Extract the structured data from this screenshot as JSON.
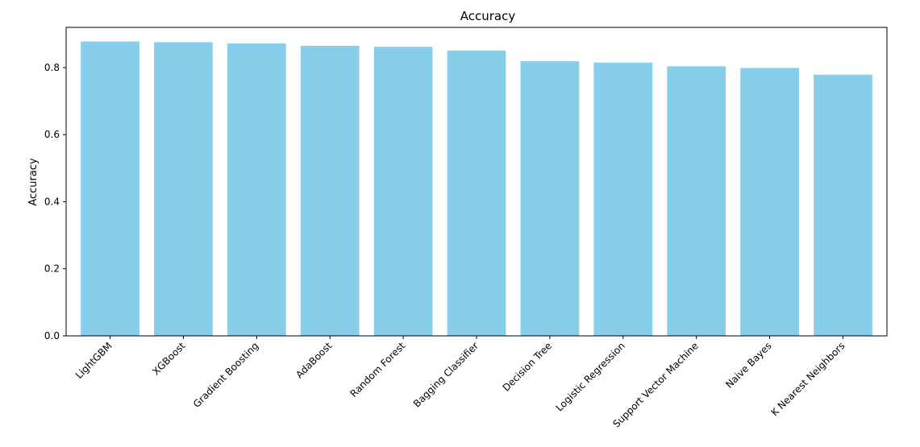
{
  "chart_data": {
    "type": "bar",
    "title": "Accuracy",
    "xlabel": "",
    "ylabel": "Accuracy",
    "categories": [
      "LightGBM",
      "XGBoost",
      "Gradient Boosting",
      "AdaBoost",
      "Random Forest",
      "Bagging Classifier",
      "Decision Tree",
      "Logistic Regression",
      "Support Vector Machine",
      "Naive Bayes",
      "K Nearest Neighbors"
    ],
    "values": [
      0.878,
      0.876,
      0.872,
      0.865,
      0.862,
      0.851,
      0.819,
      0.815,
      0.804,
      0.799,
      0.779
    ],
    "ylim": [
      0,
      0.92
    ],
    "yticks": [
      0.0,
      0.2,
      0.4,
      0.6,
      0.8
    ],
    "ytick_labels": [
      "0.0",
      "0.2",
      "0.4",
      "0.6",
      "0.8"
    ],
    "grid": false,
    "bar_color": "#87ceeb"
  }
}
